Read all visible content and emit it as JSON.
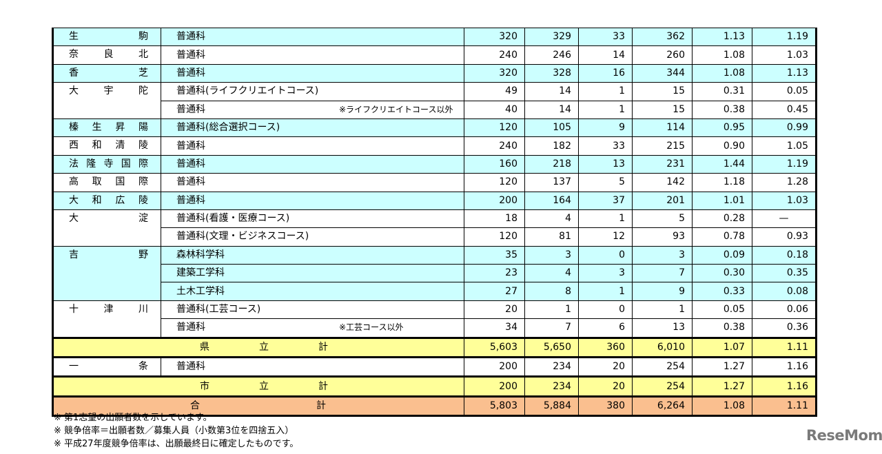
{
  "rows": [
    {
      "school": "生駒",
      "course": "普通科",
      "vals": [
        "320",
        "329",
        "33",
        "362",
        "1.13",
        "1.19"
      ],
      "bg": "blue"
    },
    {
      "school": "奈良北",
      "course": "普通科",
      "vals": [
        "240",
        "246",
        "14",
        "260",
        "1.08",
        "1.03"
      ],
      "bg": "white"
    },
    {
      "school": "香芝",
      "course": "普通科",
      "vals": [
        "320",
        "328",
        "16",
        "344",
        "1.08",
        "1.13"
      ],
      "bg": "blue"
    },
    {
      "school": "大宇陀",
      "course": "普通科(ライフクリエイトコース)",
      "vals": [
        "49",
        "14",
        "1",
        "15",
        "0.31",
        "0.05"
      ],
      "bg": "white",
      "span": 2
    },
    {
      "school": "",
      "course": "普通科",
      "note": "※ライフクリエイトコース以外",
      "vals": [
        "40",
        "14",
        "1",
        "15",
        "0.38",
        "0.45"
      ],
      "bg": "white",
      "cont": true
    },
    {
      "school": "榛生昇陽",
      "course": "普通科(総合選択コース)",
      "vals": [
        "120",
        "105",
        "9",
        "114",
        "0.95",
        "0.99"
      ],
      "bg": "blue"
    },
    {
      "school": "西和清陵",
      "course": "普通科",
      "vals": [
        "240",
        "182",
        "33",
        "215",
        "0.90",
        "1.05"
      ],
      "bg": "white"
    },
    {
      "school": "法隆寺国際",
      "course": "普通科",
      "vals": [
        "160",
        "218",
        "13",
        "231",
        "1.44",
        "1.19"
      ],
      "bg": "blue"
    },
    {
      "school": "高取国際",
      "course": "普通科",
      "vals": [
        "120",
        "137",
        "5",
        "142",
        "1.18",
        "1.28"
      ],
      "bg": "white"
    },
    {
      "school": "大和広陵",
      "course": "普通科",
      "vals": [
        "200",
        "164",
        "37",
        "201",
        "1.01",
        "1.03"
      ],
      "bg": "blue"
    },
    {
      "school": "大淀",
      "course": "普通科(看護・医療コース)",
      "vals": [
        "18",
        "4",
        "1",
        "5",
        "0.28",
        "—"
      ],
      "bg": "white",
      "span": 2
    },
    {
      "school": "",
      "course": "普通科(文理・ビジネスコース)",
      "vals": [
        "120",
        "81",
        "12",
        "93",
        "0.78",
        "0.93"
      ],
      "bg": "white",
      "cont": true
    },
    {
      "school": "吉野",
      "course": "森林科学科",
      "vals": [
        "35",
        "3",
        "0",
        "3",
        "0.09",
        "0.18"
      ],
      "bg": "blue",
      "span": 3
    },
    {
      "school": "",
      "course": "建築工学科",
      "vals": [
        "23",
        "4",
        "3",
        "7",
        "0.30",
        "0.35"
      ],
      "bg": "blue",
      "cont": true
    },
    {
      "school": "",
      "course": "土木工学科",
      "vals": [
        "27",
        "8",
        "1",
        "9",
        "0.33",
        "0.08"
      ],
      "bg": "blue",
      "cont": true
    },
    {
      "school": "十津川",
      "course": "普通科(工芸コース)",
      "vals": [
        "20",
        "1",
        "0",
        "1",
        "0.05",
        "0.06"
      ],
      "bg": "white",
      "span": 2
    },
    {
      "school": "",
      "course": "普通科",
      "note": "※工芸コース以外",
      "vals": [
        "34",
        "7",
        "6",
        "13",
        "0.38",
        "0.36"
      ],
      "bg": "white",
      "cont": true
    },
    {
      "total": "県立計",
      "vals": [
        "5,603",
        "5,650",
        "360",
        "6,010",
        "1.07",
        "1.11"
      ],
      "bg": "yellow",
      "thick": true
    },
    {
      "school": "一条",
      "course": "普通科",
      "vals": [
        "200",
        "234",
        "20",
        "254",
        "1.27",
        "1.16"
      ],
      "bg": "white",
      "thick": true
    },
    {
      "total": "市立計",
      "vals": [
        "200",
        "234",
        "20",
        "254",
        "1.27",
        "1.16"
      ],
      "bg": "yellow",
      "thick": true
    },
    {
      "total": "合計",
      "vals": [
        "5,803",
        "5,884",
        "380",
        "6,264",
        "1.08",
        "1.11"
      ],
      "bg": "orange",
      "thick": true,
      "grand": true
    }
  ],
  "notes": [
    "※  第1志望の出願者数を示しています。",
    "※  競争倍率＝出願者数／募集人員（小数第3位を四捨五入）",
    "※  平成27年度競争倍率は、出願最終日に確定したものです。"
  ],
  "logo": "ReseMom",
  "colors": {
    "blue": "#ccffff",
    "yellow": "#ffff99",
    "orange": "#fabf8f"
  }
}
